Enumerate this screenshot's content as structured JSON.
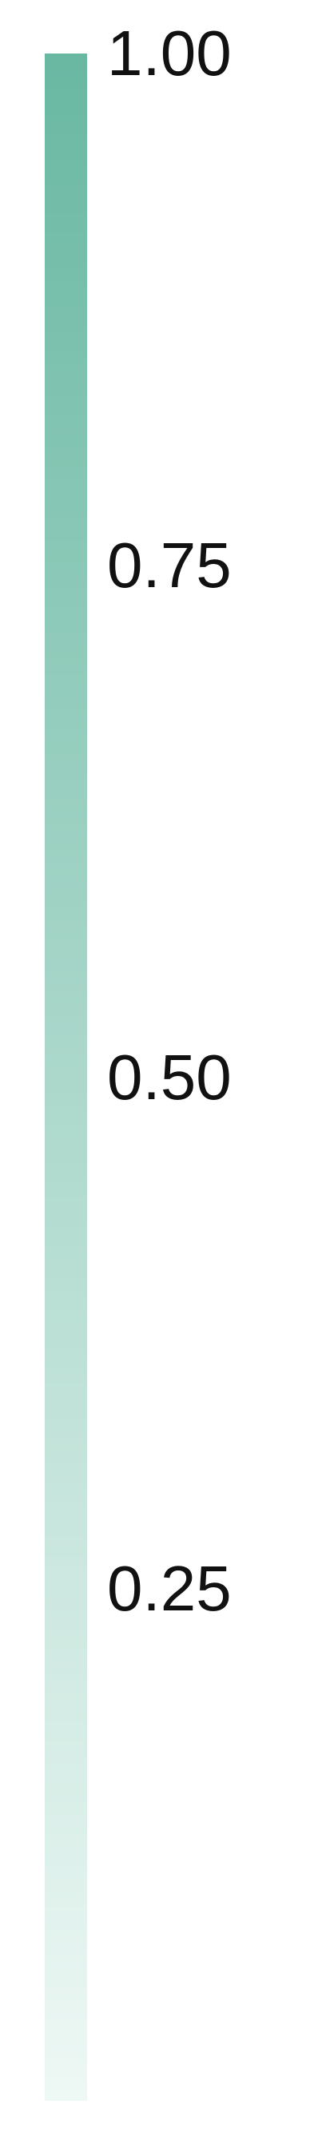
{
  "chart_data": {
    "type": "heatmap",
    "title": "",
    "colorbar": {
      "orientation": "vertical",
      "min": 0.0,
      "max": 1.0,
      "color_low": "#eef8f5",
      "color_high": "#69b8a2",
      "ticks": [
        {
          "value": 1.0,
          "label": "1.00"
        },
        {
          "value": 0.75,
          "label": "0.75"
        },
        {
          "value": 0.5,
          "label": "0.50"
        },
        {
          "value": 0.25,
          "label": "0.25"
        }
      ]
    }
  }
}
